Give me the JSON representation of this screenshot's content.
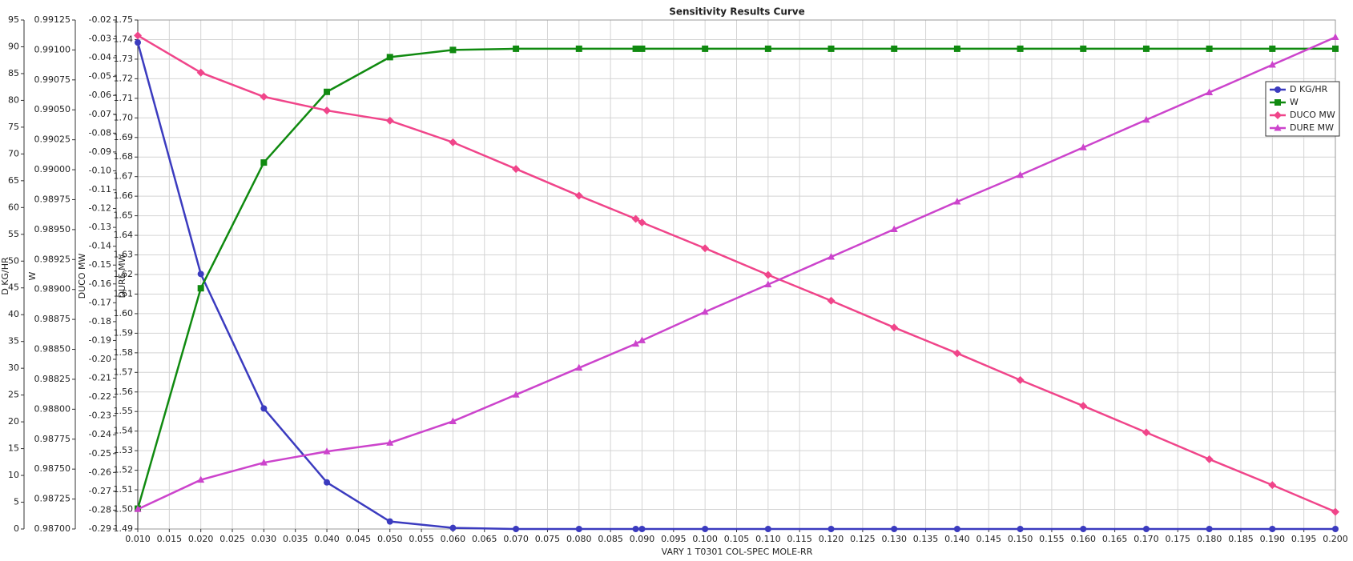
{
  "chart_data": {
    "type": "line",
    "title": "Sensitivity Results Curve",
    "xlabel": "VARY   1 T0301 COL-SPEC MOLE-RR",
    "ylabel": "D KG/HR",
    "y2label": "W",
    "y3label": "DUCO MW",
    "y4label": "DURE MW",
    "x": [
      0.01,
      0.02,
      0.03,
      0.04,
      0.05,
      0.06,
      0.07,
      0.08,
      0.089,
      0.09,
      0.1,
      0.11,
      0.12,
      0.13,
      0.14,
      0.15,
      0.16,
      0.17,
      0.18,
      0.19,
      0.2
    ],
    "xlim": [
      0.01,
      0.2
    ],
    "xticks": [
      {
        "value": 0.01,
        "label": "0.010"
      },
      0.015,
      {
        "value": 0.02,
        "label": "0.020"
      },
      0.025,
      {
        "value": 0.03,
        "label": "0.030"
      },
      0.035,
      {
        "value": 0.04,
        "label": "0.040"
      },
      0.045,
      {
        "value": 0.05,
        "label": "0.050"
      },
      0.055,
      {
        "value": 0.06,
        "label": "0.060"
      },
      0.065,
      {
        "value": 0.07,
        "label": "0.070"
      },
      0.075,
      {
        "value": 0.08,
        "label": "0.080"
      },
      0.085,
      {
        "value": 0.09,
        "label": "0.090"
      },
      0.095,
      {
        "value": 0.1,
        "label": "0.100"
      },
      0.105,
      {
        "value": 0.11,
        "label": "0.110"
      },
      0.115,
      {
        "value": 0.12,
        "label": "0.120"
      },
      0.125,
      {
        "value": 0.13,
        "label": "0.130"
      },
      0.135,
      {
        "value": 0.14,
        "label": "0.140"
      },
      0.145,
      {
        "value": 0.15,
        "label": "0.150"
      },
      0.155,
      {
        "value": 0.16,
        "label": "0.160"
      },
      0.165,
      {
        "value": 0.17,
        "label": "0.170"
      },
      0.175,
      {
        "value": 0.18,
        "label": "0.180"
      },
      0.185,
      {
        "value": 0.19,
        "label": "0.190"
      },
      0.195,
      {
        "value": 0.2,
        "label": "0.200"
      }
    ],
    "ylim": [
      0,
      95
    ],
    "yticks": [
      0,
      5,
      10,
      15,
      20,
      25,
      30,
      35,
      40,
      45,
      50,
      55,
      60,
      65,
      70,
      75,
      80,
      85,
      90,
      95
    ],
    "y2lim": [
      0.987,
      0.99125
    ],
    "y2ticks": [
      {
        "value": 0.987,
        "label": "0.98700"
      },
      0.98725,
      {
        "value": 0.9875,
        "label": "0.98750"
      },
      0.98775,
      {
        "value": 0.988,
        "label": "0.98800"
      },
      0.98825,
      {
        "value": 0.9885,
        "label": "0.98850"
      },
      0.98875,
      {
        "value": 0.989,
        "label": "0.98900"
      },
      0.98925,
      {
        "value": 0.9895,
        "label": "0.98950"
      },
      0.98975,
      {
        "value": 0.99,
        "label": "0.99000"
      },
      0.99025,
      {
        "value": 0.9905,
        "label": "0.99050"
      },
      0.99075,
      {
        "value": 0.991,
        "label": "0.99100"
      },
      0.99125
    ],
    "y3lim": [
      -0.29,
      -0.02
    ],
    "y3ticks": [
      -0.29,
      -0.28,
      -0.27,
      -0.26,
      -0.25,
      -0.24,
      -0.23,
      -0.22,
      -0.21,
      {
        "value": -0.2,
        "label": "-0.20"
      },
      -0.19,
      -0.18,
      -0.17,
      -0.16,
      -0.15,
      -0.14,
      -0.13,
      -0.12,
      -0.11,
      {
        "value": -0.1,
        "label": "-0.10"
      },
      -0.09,
      -0.08,
      -0.07,
      -0.06,
      -0.05,
      -0.04,
      -0.03,
      -0.02
    ],
    "y4lim": [
      1.49,
      1.75
    ],
    "y4ticks": [
      1.49,
      {
        "value": 1.5,
        "label": "1.50"
      },
      1.51,
      1.52,
      1.53,
      1.54,
      1.55,
      1.56,
      1.57,
      1.58,
      1.59,
      {
        "value": 1.6,
        "label": "1.60"
      },
      1.61,
      1.62,
      1.63,
      1.64,
      1.65,
      1.66,
      1.67,
      1.68,
      1.69,
      {
        "value": 1.7,
        "label": "1.70"
      },
      1.71,
      1.72,
      1.73,
      1.74,
      1.75
    ],
    "grid": true,
    "legend": "upper right",
    "series": [
      {
        "name": "D KG/HR",
        "color": "#3b3bbf",
        "marker": "circle",
        "axis": "y",
        "values": [
          90.8,
          47.6,
          22.5,
          8.7,
          1.4,
          0.2,
          0,
          0,
          0,
          0,
          0,
          0,
          0,
          0,
          0,
          0,
          0,
          0,
          0,
          0,
          0
        ]
      },
      {
        "name": "W",
        "color": "#108a10",
        "marker": "square",
        "axis": "y2",
        "values": [
          0.98717,
          0.98901,
          0.99006,
          0.99065,
          0.99094,
          0.991,
          0.99101,
          0.99101,
          0.99101,
          0.99101,
          0.99101,
          0.99101,
          0.99101,
          0.99101,
          0.99101,
          0.99101,
          0.99101,
          0.99101,
          0.99101,
          0.99101,
          0.99101
        ]
      },
      {
        "name": "DUCO MW",
        "color": "#f0458a",
        "marker": "diamond",
        "axis": "y3",
        "values": [
          -0.0282,
          -0.0479,
          -0.0607,
          -0.068,
          -0.0734,
          -0.0849,
          -0.099,
          -0.1132,
          -0.1255,
          -0.1274,
          -0.1411,
          -0.1552,
          -0.1689,
          -0.1831,
          -0.1968,
          -0.211,
          -0.2247,
          -0.2388,
          -0.253,
          -0.2667,
          -0.2809
        ]
      },
      {
        "name": "DURE MW",
        "color": "#cc44cc",
        "marker": "triangle",
        "axis": "y4",
        "values": [
          1.5001,
          1.5151,
          1.5239,
          1.5296,
          1.534,
          1.545,
          1.5586,
          1.5723,
          1.5846,
          1.5863,
          1.6009,
          1.6149,
          1.629,
          1.6431,
          1.6572,
          1.6708,
          1.6849,
          1.699,
          1.713,
          1.7271,
          1.7412
        ]
      }
    ]
  }
}
